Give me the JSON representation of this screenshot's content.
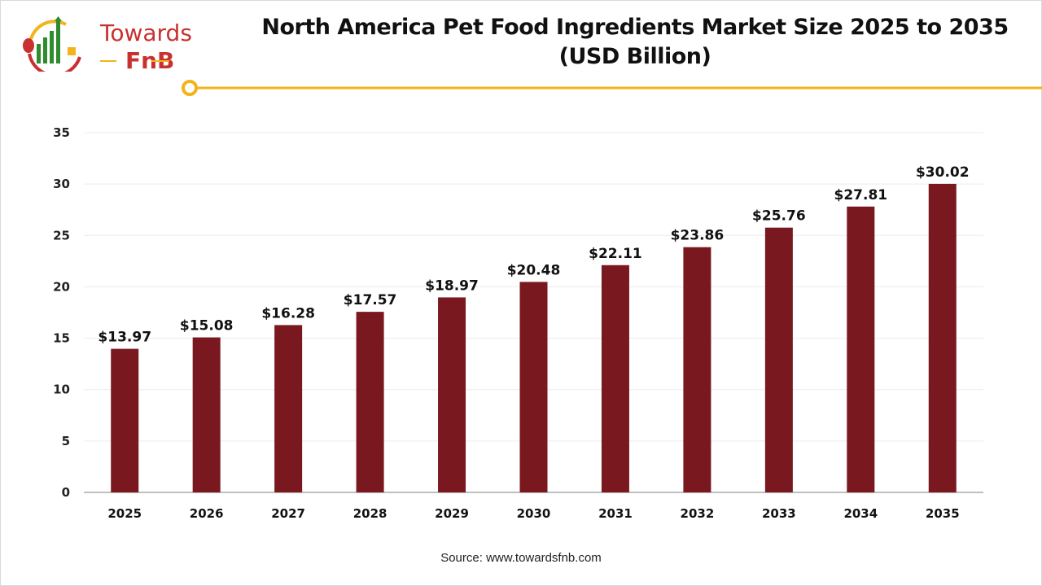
{
  "logo": {
    "line1": "Towards",
    "line2": "FnB"
  },
  "chart_data": {
    "type": "bar",
    "title": "North America Pet Food Ingredients Market Size 2025 to 2035 (USD Billion)",
    "title_line1": "North America Pet Food Ingredients Market Size 2025 to 2035",
    "title_line2": "(USD Billion)",
    "categories": [
      "2025",
      "2026",
      "2027",
      "2028",
      "2029",
      "2030",
      "2031",
      "2032",
      "2033",
      "2034",
      "2035"
    ],
    "values": [
      13.97,
      15.08,
      16.28,
      17.57,
      18.97,
      20.48,
      22.11,
      23.86,
      25.76,
      27.81,
      30.02
    ],
    "data_labels": [
      "$13.97",
      "$15.08",
      "$16.28",
      "$17.57",
      "$18.97",
      "$20.48",
      "$22.11",
      "$23.86",
      "$25.76",
      "$27.81",
      "$30.02"
    ],
    "xlabel": "",
    "ylabel": "",
    "ylim": [
      0,
      35
    ],
    "yticks": [
      0,
      5,
      10,
      15,
      20,
      25,
      30,
      35
    ],
    "grid": true,
    "bar_color": "#7a1820",
    "accent_color": "#f2b418"
  },
  "source": "Source: www.towardsfnb.com"
}
